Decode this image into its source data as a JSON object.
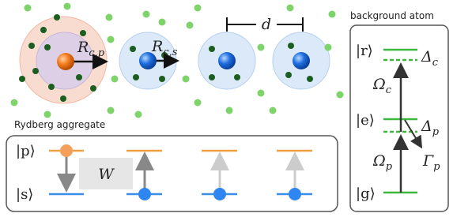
{
  "atoms": {
    "radius_p": {
      "main": "R",
      "sub": "c,p"
    },
    "radius_s": {
      "main": "R",
      "sub": "c,s"
    },
    "spacing": "d"
  },
  "aggregate": {
    "title": "Rydberg aggregate",
    "states": {
      "p": "|p⟩",
      "s": "|s⟩"
    },
    "interaction": "W"
  },
  "background": {
    "title": "background atom",
    "levels": {
      "r": "|r⟩",
      "e": "|e⟩",
      "g": "|g⟩"
    },
    "detunings": {
      "c": {
        "main": "Δ",
        "sub": "c"
      },
      "p": {
        "main": "Δ",
        "sub": "p"
      }
    },
    "rabi": {
      "c": {
        "main": "Ω",
        "sub": "c"
      },
      "p": {
        "main": "Ω",
        "sub": "p"
      }
    },
    "decay": {
      "main": "Γ",
      "sub": "p"
    }
  }
}
